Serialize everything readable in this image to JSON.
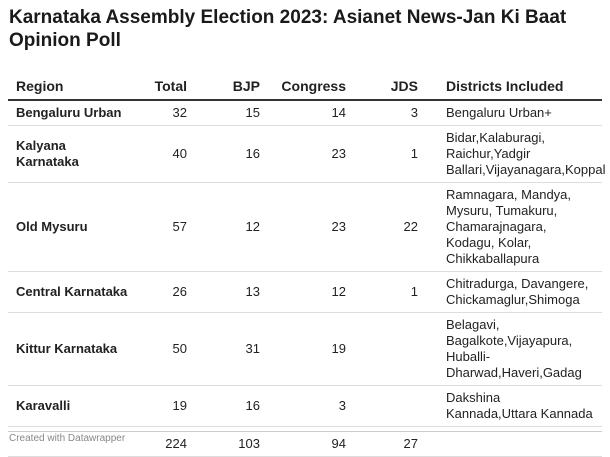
{
  "header": {
    "title": "Karnataka Assembly Election 2023: Asianet News-Jan Ki Baat Opinion Poll"
  },
  "table": {
    "columns": [
      "Region",
      "Total",
      "BJP",
      "Congress",
      "JDS",
      "Districts Included"
    ],
    "rows": [
      [
        "Bengaluru Urban",
        32,
        15,
        14,
        3,
        "Bengaluru Urban+"
      ],
      [
        "Kalyana Karnataka",
        40,
        16,
        23,
        1,
        "Bidar,Kalaburagi, Raichur,Yadgir Ballari,Vijayanagara,Koppal"
      ],
      [
        "Old Mysuru",
        57,
        12,
        23,
        22,
        "Ramnagara, Mandya, Mysuru, Tumakuru, Chamarajnagara, Kodagu, Kolar, Chikkaballapura"
      ],
      [
        "Central Karnataka",
        26,
        13,
        12,
        1,
        "Chitradurga, Davangere, Chickamaglur,Shimoga"
      ],
      [
        "Kittur Karnataka",
        50,
        31,
        19,
        null,
        "Belagavi, Bagalkote,Vijayapura, Huballi-Dharwad,Haveri,Gadag"
      ],
      [
        "Karavalli",
        19,
        16,
        3,
        null,
        "Dakshina Kannada,Uttara Kannada"
      ]
    ],
    "total_row": [
      null,
      224,
      103,
      94,
      27,
      null
    ]
  },
  "footer": {
    "credit": "Created with Datawrapper"
  }
}
